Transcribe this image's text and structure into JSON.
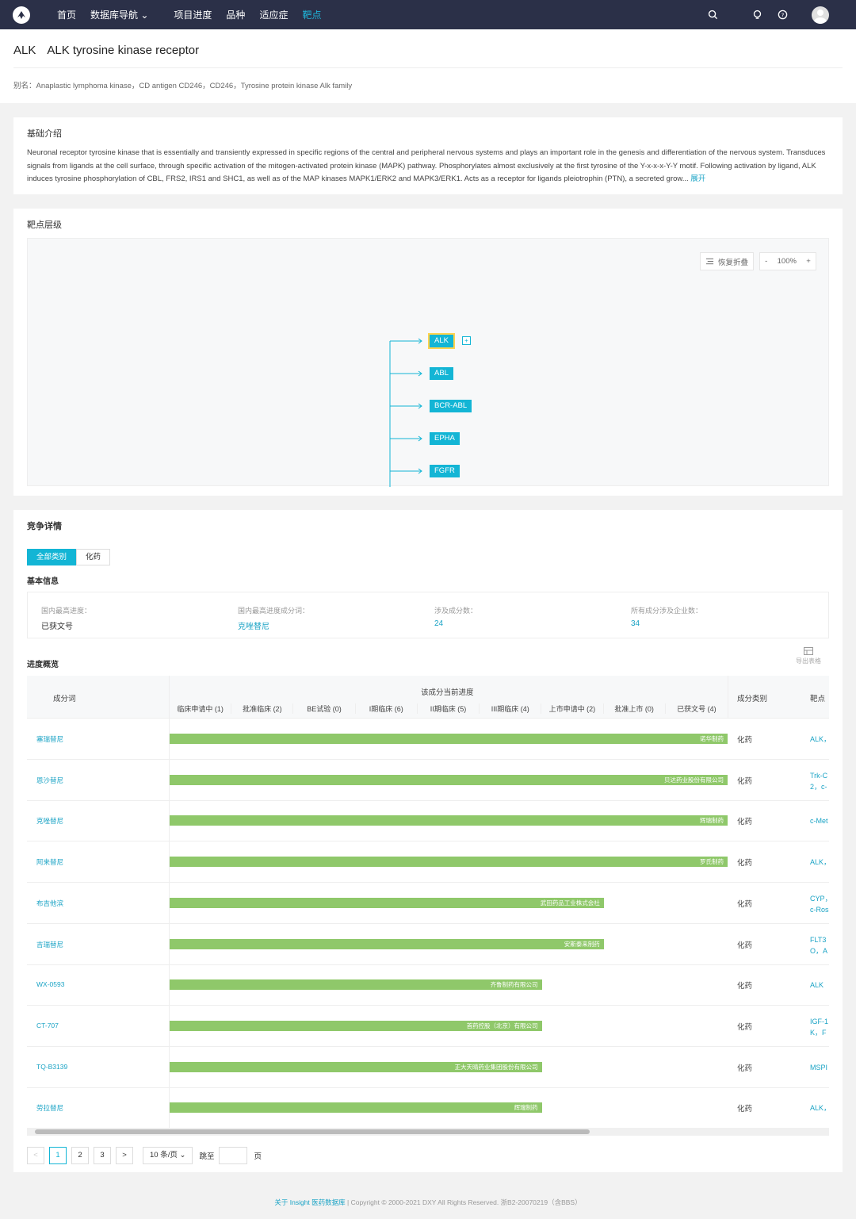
{
  "nav": {
    "items": [
      "首页",
      "数据库导航 ⌄",
      "项目进度",
      "品种",
      "适应症",
      "靶点"
    ],
    "active_index": 5
  },
  "header": {
    "symbol": "ALK",
    "name": "ALK tyrosine kinase receptor",
    "alias": "别名：Anaplastic lymphoma kinase，CD antigen CD246，CD246，Tyrosine protein kinase Alk family"
  },
  "intro": {
    "title": "基础介绍",
    "text": "Neuronal receptor tyrosine kinase that is essentially and transiently expressed in specific regions of the central and peripheral nervous systems and plays an important role in the genesis and differentiation of the nervous system. Transduces signals from ligands at the cell surface, through specific activation of the mitogen-activated protein kinase (MAPK) pathway. Phosphorylates almost exclusively at the first tyrosine of the Y-x-x-x-Y-Y motif. Following activation by ligand, ALK induces tyrosine phosphorylation of CBL, FRS2, IRS1 and SHC1, as well as of the MAP kinases MAPK1/ERK2 and MAPK3/ERK1. Acts as a receptor for ligands pleiotrophin (PTN), a secreted grow...",
    "expand": "展开"
  },
  "hierarchy": {
    "title": "靶点层级",
    "restore": "恢复折叠",
    "zoom_minus": "-",
    "zoom": "100%",
    "zoom_plus": "+",
    "expand_icon": "+",
    "nodes": [
      "ALK",
      "ABL",
      "BCR-ABL",
      "EPHA",
      "FGFR"
    ],
    "accent": "#13b5d5"
  },
  "competition": {
    "title": "竞争详情",
    "tabs": [
      "全部类别",
      "化药"
    ],
    "basic_title": "基本信息",
    "info": [
      {
        "label": "国内最高进度：",
        "value": "已获文号"
      },
      {
        "label": "国内最高进度成分词：",
        "value": "克唑替尼"
      },
      {
        "label": "涉及成分数：",
        "value": "24"
      },
      {
        "label": "所有成分涉及企业数：",
        "value": "34"
      }
    ],
    "progress_title": "进度概览",
    "export": "导出表格",
    "headers": {
      "name": "成分词",
      "progress": "该成分当前进度",
      "type": "成分类别",
      "target": "靶点",
      "stages": [
        "临床申请中 (1)",
        "批准临床 (2)",
        "BE试验 (0)",
        "I期临床 (6)",
        "II期临床 (5)",
        "III期临床 (4)",
        "上市申请中 (2)",
        "批准上市 (0)",
        "已获文号 (4)"
      ]
    },
    "rows": [
      {
        "name": "塞瑞替尼",
        "company": "诺华制药",
        "progress": 1.0,
        "type": "化药",
        "target": [
          "ALK，"
        ]
      },
      {
        "name": "恩沙替尼",
        "company": "贝达药业股份有限公司",
        "progress": 1.0,
        "type": "化药",
        "target": [
          "Trk-C",
          "2，c-"
        ]
      },
      {
        "name": "克唑替尼",
        "company": "辉瑞制药",
        "progress": 1.0,
        "type": "化药",
        "target": [
          "c-Met"
        ]
      },
      {
        "name": "阿来替尼",
        "company": "罗氏制药",
        "progress": 1.0,
        "type": "化药",
        "target": [
          "ALK，"
        ]
      },
      {
        "name": "布吉他滨",
        "company": "武田药品工业株式会社",
        "progress": 0.778,
        "type": "化药",
        "target": [
          "CYP，",
          "c-Ros"
        ]
      },
      {
        "name": "吉瑞替尼",
        "company": "安斯泰来制药",
        "progress": 0.778,
        "type": "化药",
        "target": [
          "FLT3",
          "O，A"
        ]
      },
      {
        "name": "WX-0593",
        "company": "齐鲁制药有限公司",
        "progress": 0.667,
        "type": "化药",
        "target": [
          "ALK"
        ]
      },
      {
        "name": "CT-707",
        "company": "首药控股（北京）有限公司",
        "progress": 0.667,
        "type": "化药",
        "target": [
          "IGF-1",
          "K，F"
        ]
      },
      {
        "name": "TQ-B3139",
        "company": "正大天晴药业集团股份有限公司",
        "progress": 0.667,
        "type": "化药",
        "target": [
          "MSPI"
        ]
      },
      {
        "name": "劳拉替尼",
        "company": "辉瑞制药",
        "progress": 0.667,
        "type": "化药",
        "target": [
          "ALK，"
        ]
      }
    ],
    "bar_color": "#8fc86a",
    "pager": {
      "prev": "<",
      "pages": [
        "1",
        "2",
        "3"
      ],
      "current": "1",
      "next": ">",
      "page_size": "10 条/页 ⌄",
      "jump": "跳至",
      "page_unit": "页"
    }
  },
  "footer": {
    "about": "关于 Insight 医药数据库",
    "copyright": " | Copyright © 2000-2021 DXY All Rights Reserved. 浙B2-20070219（含BBS）"
  }
}
